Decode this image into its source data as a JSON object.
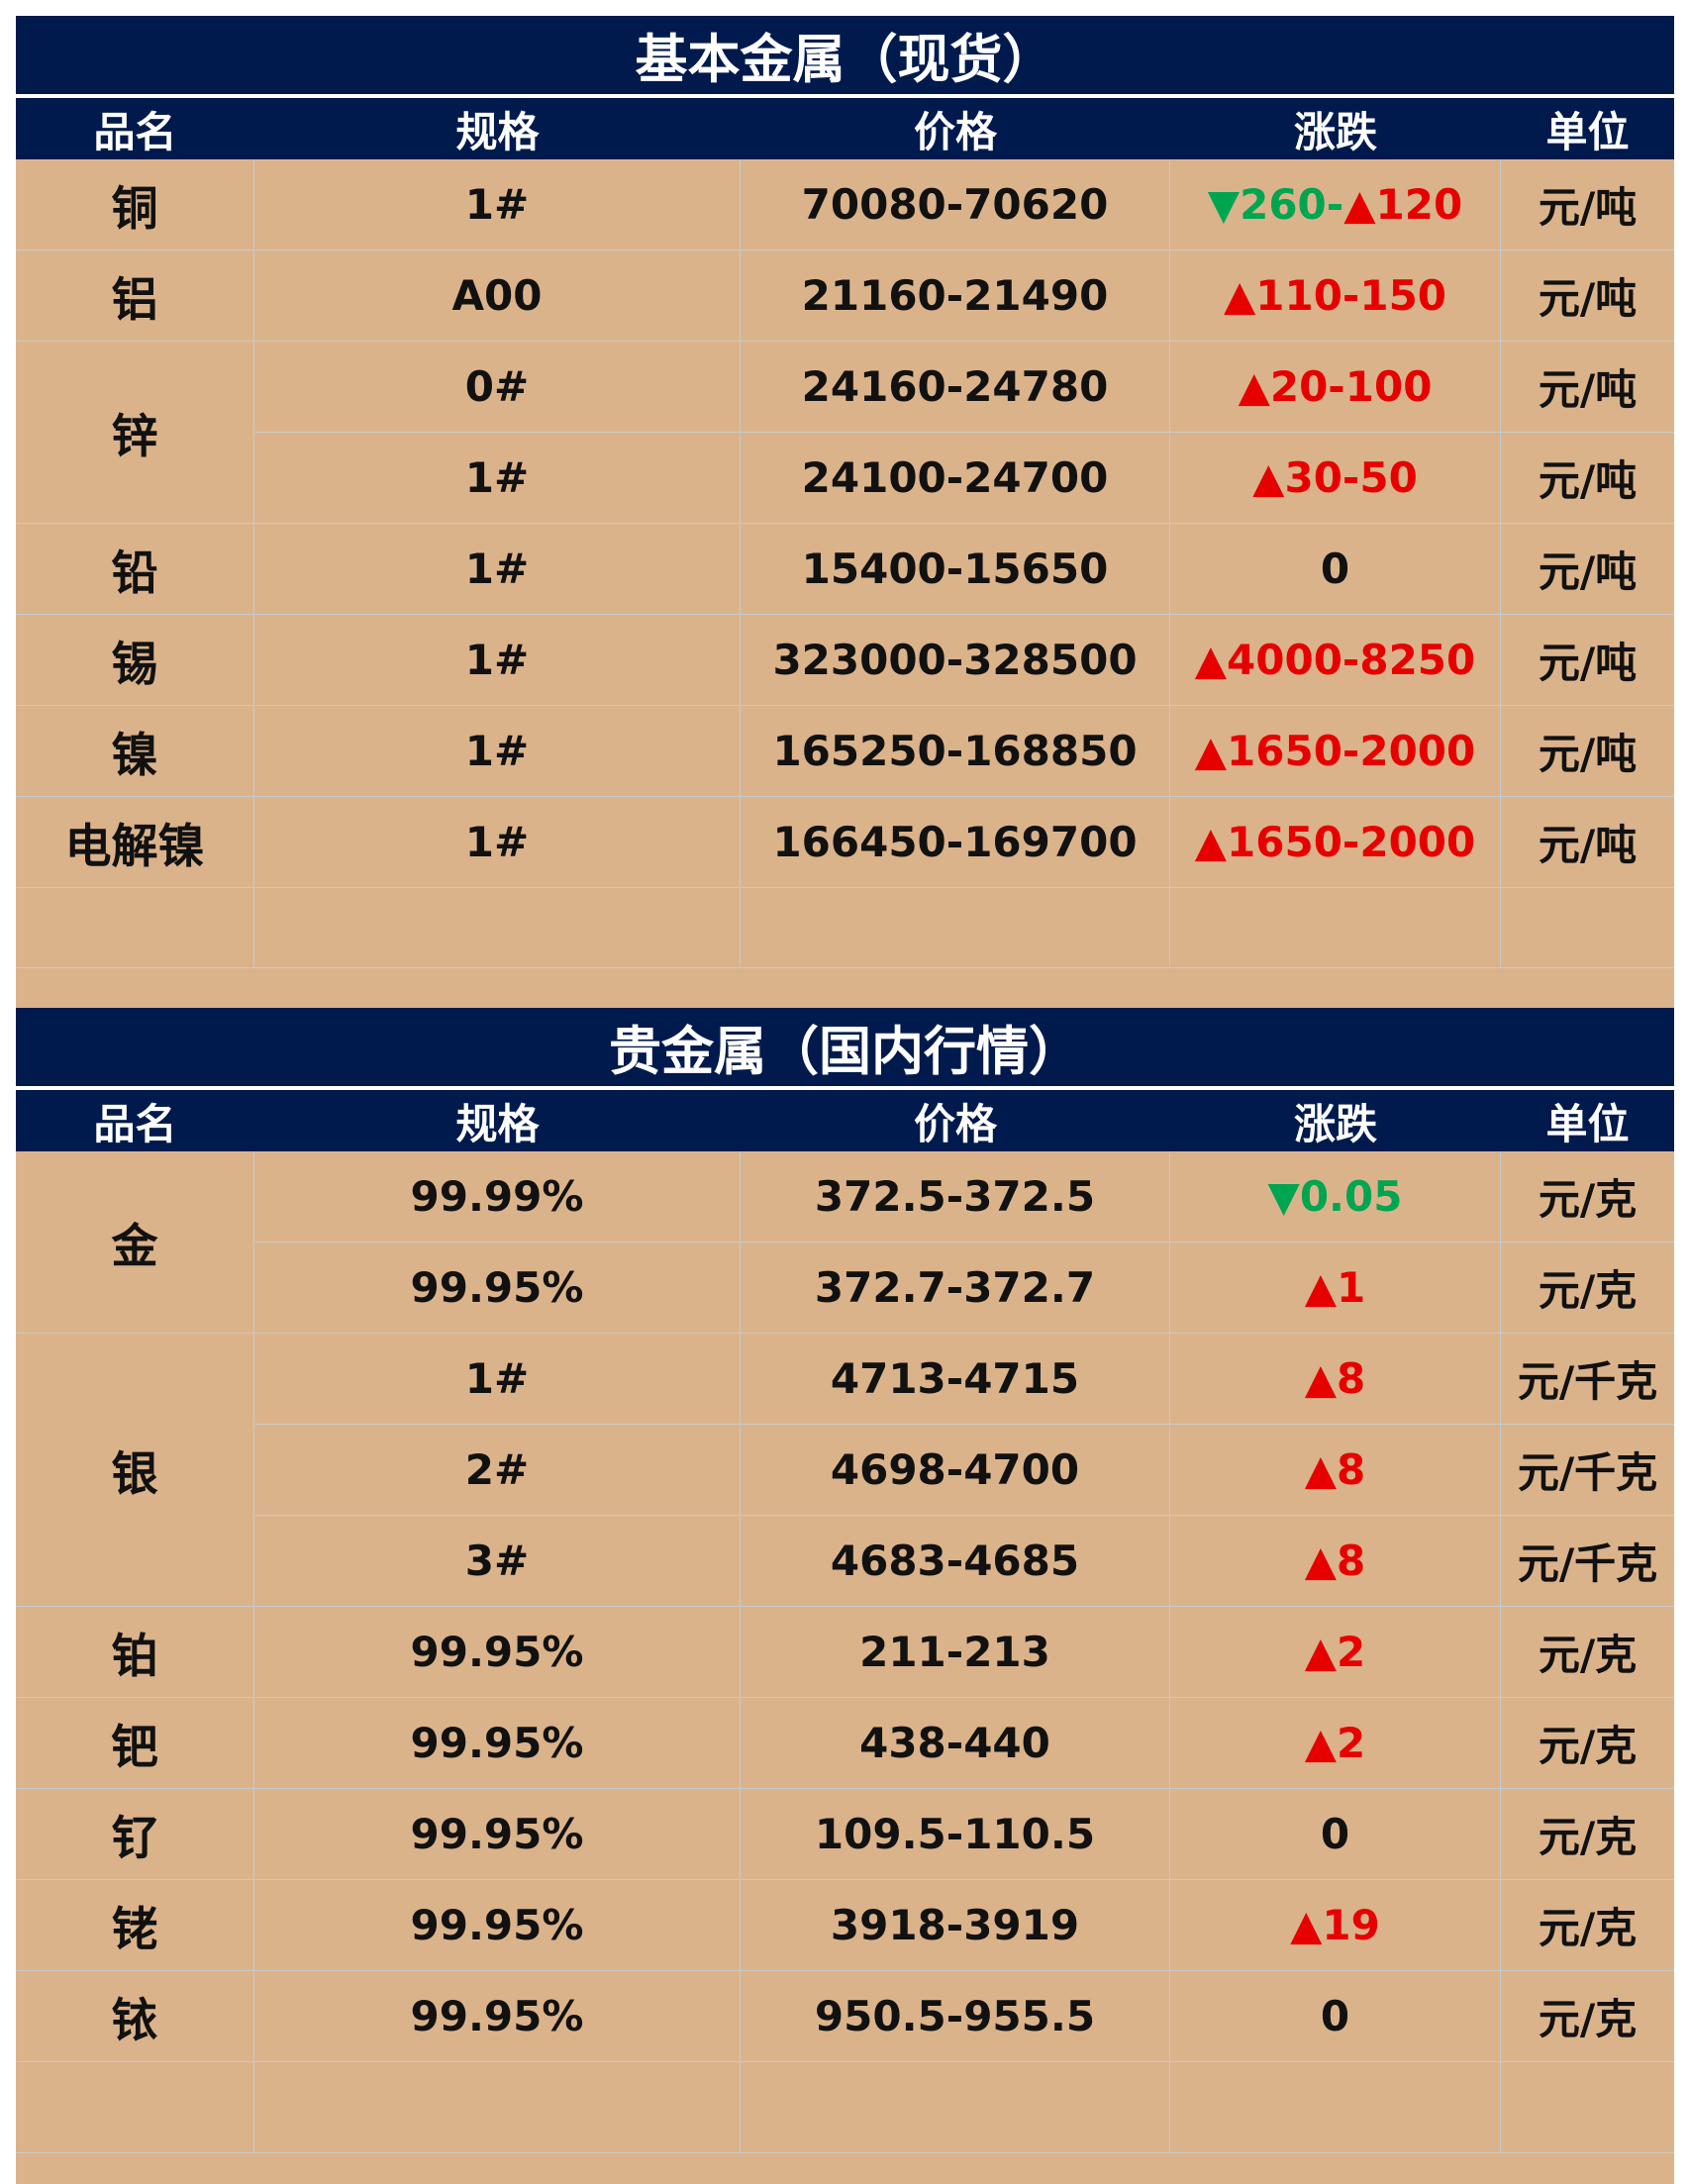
{
  "sections": [
    {
      "title": "基本金属（现货）",
      "headers": [
        "品名",
        "规格",
        "价格",
        "涨跌",
        "单位"
      ],
      "rows": [
        {
          "name": "铜",
          "spec": "1#",
          "price": "70080-70620",
          "change": [
            {
              "t": "▼260-",
              "dir": "down"
            },
            {
              "t": "▲120",
              "dir": "up"
            }
          ],
          "unit": "元/吨"
        },
        {
          "name": "铝",
          "spec": "A00",
          "price": "21160-21490",
          "change": [
            {
              "t": "▲110-150",
              "dir": "up"
            }
          ],
          "unit": "元/吨"
        },
        {
          "name": "锌",
          "spec": "0#",
          "price": "24160-24780",
          "change": [
            {
              "t": "▲20-100",
              "dir": "up"
            }
          ],
          "unit": "元/吨"
        },
        {
          "name": "",
          "spec": "1#",
          "price": "24100-24700",
          "change": [
            {
              "t": "▲30-50",
              "dir": "up"
            }
          ],
          "unit": "元/吨"
        },
        {
          "name": "铅",
          "spec": "1#",
          "price": "15400-15650",
          "change": [
            {
              "t": "0",
              "dir": "flat"
            }
          ],
          "unit": "元/吨"
        },
        {
          "name": "锡",
          "spec": "1#",
          "price": "323000-328500",
          "change": [
            {
              "t": "▲4000-8250",
              "dir": "up"
            }
          ],
          "unit": "元/吨"
        },
        {
          "name": "镍",
          "spec": "1#",
          "price": "165250-168850",
          "change": [
            {
              "t": "▲1650-2000",
              "dir": "up"
            }
          ],
          "unit": "元/吨"
        },
        {
          "name": "电解镍",
          "spec": "1#",
          "price": "166450-169700",
          "change": [
            {
              "t": "▲1650-2000",
              "dir": "up"
            }
          ],
          "unit": "元/吨"
        }
      ]
    },
    {
      "title": "贵金属（国内行情）",
      "headers": [
        "品名",
        "规格",
        "价格",
        "涨跌",
        "单位"
      ],
      "rows": [
        {
          "name": "金",
          "spec": "99.99%",
          "price": "372.5-372.5",
          "change": [
            {
              "t": "▼0.05",
              "dir": "down"
            }
          ],
          "unit": "元/克"
        },
        {
          "name": "",
          "spec": "99.95%",
          "price": "372.7-372.7",
          "change": [
            {
              "t": "▲1",
              "dir": "up"
            }
          ],
          "unit": "元/克"
        },
        {
          "name": "银",
          "spec": "1#",
          "price": "4713-4715",
          "change": [
            {
              "t": "▲8",
              "dir": "up"
            }
          ],
          "unit": "元/千克"
        },
        {
          "name": "",
          "spec": "2#",
          "price": "4698-4700",
          "change": [
            {
              "t": "▲8",
              "dir": "up"
            }
          ],
          "unit": "元/千克"
        },
        {
          "name": "",
          "spec": "3#",
          "price": "4683-4685",
          "change": [
            {
              "t": "▲8",
              "dir": "up"
            }
          ],
          "unit": "元/千克"
        },
        {
          "name": "铂",
          "spec": "99.95%",
          "price": "211-213",
          "change": [
            {
              "t": "▲2",
              "dir": "up"
            }
          ],
          "unit": "元/克"
        },
        {
          "name": "钯",
          "spec": "99.95%",
          "price": "438-440",
          "change": [
            {
              "t": "▲2",
              "dir": "up"
            }
          ],
          "unit": "元/克"
        },
        {
          "name": "钌",
          "spec": "99.95%",
          "price": "109.5-110.5",
          "change": [
            {
              "t": "0",
              "dir": "flat"
            }
          ],
          "unit": "元/克"
        },
        {
          "name": "铑",
          "spec": "99.95%",
          "price": "3918-3919",
          "change": [
            {
              "t": "▲19",
              "dir": "up"
            }
          ],
          "unit": "元/克"
        },
        {
          "name": "铱",
          "spec": "99.95%",
          "price": "950.5-955.5",
          "change": [
            {
              "t": "0",
              "dir": "flat"
            }
          ],
          "unit": "元/克"
        }
      ]
    }
  ],
  "colors": {
    "header_bg": "#001a4d",
    "cell_bg": "#dbb38b",
    "up": "#e60000",
    "down": "#00a551"
  }
}
